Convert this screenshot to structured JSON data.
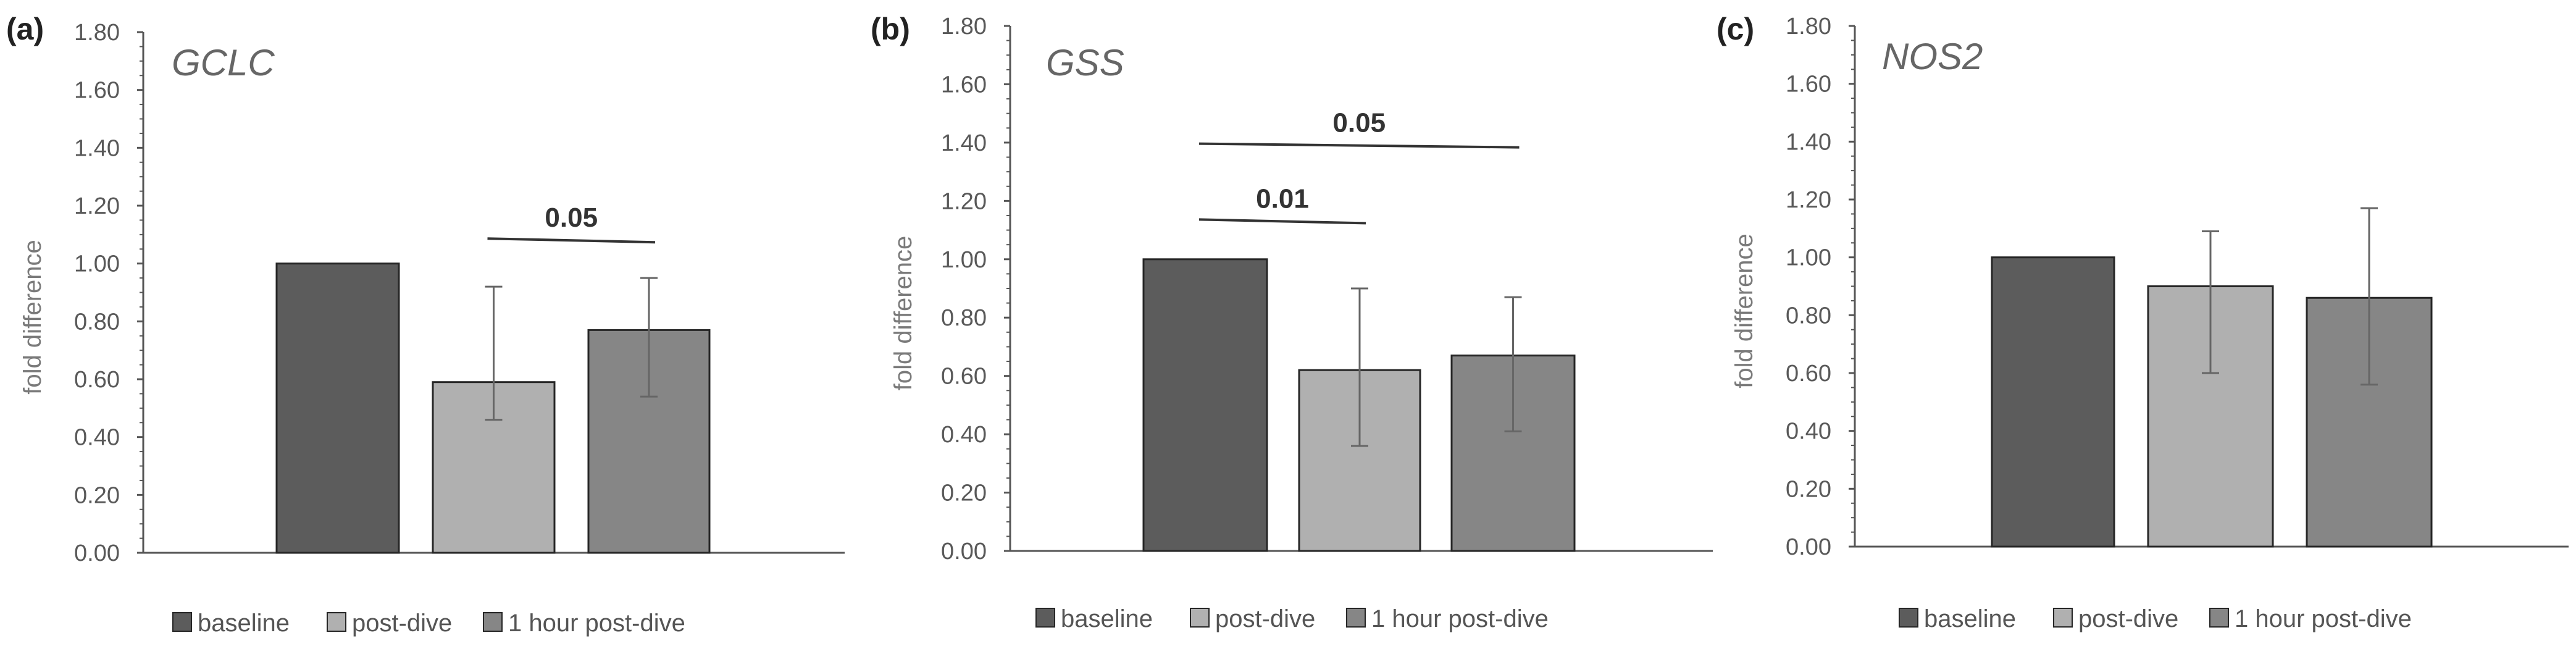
{
  "chart_data": [
    {
      "type": "bar",
      "panel": "(a)",
      "title": "GCLC",
      "xlabel": "",
      "ylabel": "fold difference",
      "ylim": [
        0,
        1.8
      ],
      "yticks": [
        "0.00",
        "0.20",
        "0.40",
        "0.60",
        "0.80",
        "1.00",
        "1.20",
        "1.40",
        "1.60",
        "1.80"
      ],
      "categories": [
        "baseline",
        "post-dive",
        "1 hour post-dive"
      ],
      "values": [
        1.0,
        0.59,
        0.77
      ],
      "error_low": [
        null,
        0.46,
        0.54
      ],
      "error_high": [
        null,
        0.92,
        0.95
      ],
      "significance": [
        {
          "label": "0.05",
          "from": 1,
          "to": 2,
          "y": 1.08
        }
      ],
      "legend": [
        "baseline",
        "post-dive",
        "1 hour post-dive"
      ]
    },
    {
      "type": "bar",
      "panel": "(b)",
      "title": "GSS",
      "xlabel": "",
      "ylabel": "fold difference",
      "ylim": [
        0,
        1.8
      ],
      "yticks": [
        "0.00",
        "0.20",
        "0.40",
        "0.60",
        "0.80",
        "1.00",
        "1.20",
        "1.40",
        "1.60",
        "1.80"
      ],
      "categories": [
        "baseline",
        "post-dive",
        "1 hour post-dive"
      ],
      "values": [
        1.0,
        0.62,
        0.67
      ],
      "error_low": [
        null,
        0.36,
        0.41
      ],
      "error_high": [
        null,
        0.9,
        0.87
      ],
      "significance": [
        {
          "label": "0.01",
          "from": 0,
          "to": 1,
          "y": 1.13
        },
        {
          "label": "0.05",
          "from": 0,
          "to": 2,
          "y": 1.39
        }
      ],
      "legend": [
        "baseline",
        "post-dive",
        "1 hour post-dive"
      ]
    },
    {
      "type": "bar",
      "panel": "(c)",
      "title": "NOS2",
      "xlabel": "",
      "ylabel": "fold difference",
      "ylim": [
        0,
        1.8
      ],
      "yticks": [
        "0.00",
        "0.20",
        "0.40",
        "0.60",
        "0.80",
        "1.00",
        "1.20",
        "1.40",
        "1.60",
        "1.80"
      ],
      "categories": [
        "baseline",
        "post-dive",
        "1 hour post-dive"
      ],
      "values": [
        1.0,
        0.9,
        0.86
      ],
      "error_low": [
        null,
        0.6,
        0.56
      ],
      "error_high": [
        null,
        1.09,
        1.17
      ],
      "significance": [],
      "legend": [
        "baseline",
        "post-dive",
        "1 hour post-dive"
      ]
    }
  ],
  "colors": {
    "baseline": "#5c5c5c",
    "post-dive": "#b0b0b0",
    "1 hour post-dive": "#868686",
    "axis": "#555555",
    "error_bar": "#666666"
  }
}
